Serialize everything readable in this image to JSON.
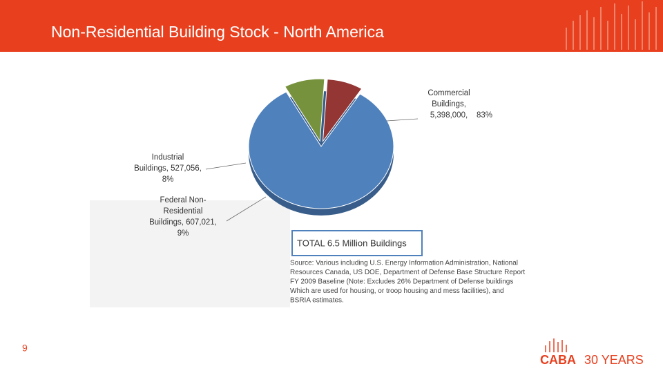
{
  "slide": {
    "title": "Non-Residential Building Stock - North America",
    "page_number": "9",
    "logo_name": "CABA",
    "logo_tagline": "30 YEARS"
  },
  "chart_data": {
    "type": "pie",
    "categories": [
      "Commercial Buildings,",
      "Industrial Buildings, 527,056,",
      "Federal Non-Residential Buildings, 607,021,"
    ],
    "category_lines": [
      [
        "Commercial",
        "Buildings,",
        "5,398,000,"
      ],
      [
        "Industrial",
        "Buildings, 527,056,"
      ],
      [
        "Federal Non-",
        "Residential",
        "Buildings, 607,021,"
      ]
    ],
    "values": [
      83,
      8,
      9
    ],
    "value_labels": [
      "83%",
      "8%",
      "9%"
    ],
    "colors": [
      "#4f81bd",
      "#943634",
      "#76923c"
    ],
    "total_label": "TOTAL 6.5 Million Buildings",
    "source": [
      "Source:  Various including U.S. Energy Information Administration, National",
      "Resources Canada, US DOE, Department of Defense Base Structure Report",
      "FY 2009 Baseline (Note:  Excludes 26% Department of Defense buildings",
      "Which are used for housing, or troop housing and mess facilities), and",
      "BSRIA estimates."
    ]
  }
}
